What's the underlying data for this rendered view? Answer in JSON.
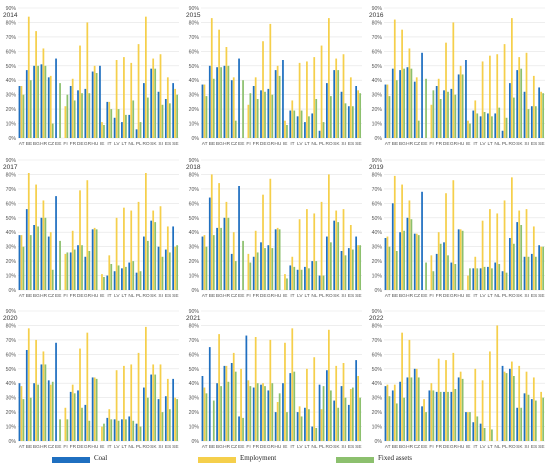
{
  "colors": {
    "coal": "#1f6fc0",
    "employment": "#f5cf4b",
    "fixed_assets": "#8cc06e",
    "grid": "#e3e3e3",
    "text": "#555555"
  },
  "legend": {
    "coal": "Coal",
    "employment": "Employment",
    "fixed_assets": "Fixed assets"
  },
  "chart_data": [
    {
      "type": "bar",
      "title": "2014",
      "ylim": [
        0,
        90
      ],
      "yticks": [
        "0%",
        "10%",
        "20%",
        "30%",
        "40%",
        "50%",
        "60%",
        "70%",
        "80%",
        "90%"
      ],
      "categories": [
        "AT",
        "BE",
        "BG",
        "HR",
        "CZ",
        "EE",
        "FI",
        "FR",
        "DE",
        "GR",
        "HU",
        "IE",
        "IT",
        "LV",
        "LT",
        "NL",
        "PL",
        "RO",
        "SK",
        "SI",
        "ES",
        "SE"
      ],
      "series": [
        {
          "name": "Coal",
          "values": [
            36,
            47,
            50,
            51,
            42,
            55,
            0,
            36,
            33,
            34,
            46,
            50,
            25,
            14,
            11,
            16,
            6,
            38,
            48,
            32,
            27,
            38
          ]
        },
        {
          "name": "Employment",
          "values": [
            36,
            84,
            74,
            62,
            43,
            0,
            22,
            41,
            64,
            80,
            50,
            11,
            25,
            54,
            56,
            52,
            65,
            84,
            55,
            58,
            42,
            34
          ]
        },
        {
          "name": "Fixed assets",
          "values": [
            30,
            40,
            50,
            50,
            10,
            38,
            30,
            26,
            31,
            31,
            45,
            9,
            20,
            20,
            16,
            26,
            11,
            28,
            48,
            23,
            24,
            30
          ]
        }
      ]
    },
    {
      "type": "bar",
      "title": "2015",
      "ylim": [
        0,
        90
      ],
      "yticks": [
        "0%",
        "10%",
        "20%",
        "30%",
        "40%",
        "50%",
        "60%",
        "70%",
        "80%",
        "90%"
      ],
      "categories": [
        "AT",
        "BE",
        "BG",
        "HR",
        "CZ",
        "EE",
        "FI",
        "FR",
        "DE",
        "GR",
        "HU",
        "IE",
        "IT",
        "LV",
        "LT",
        "NL",
        "PL",
        "RO",
        "SK",
        "SI",
        "ES",
        "SE"
      ],
      "series": [
        {
          "name": "Coal",
          "values": [
            37,
            50,
            49,
            50,
            40,
            55,
            0,
            36,
            33,
            34,
            47,
            54,
            19,
            15,
            11,
            17,
            5,
            38,
            47,
            32,
            22,
            36
          ]
        },
        {
          "name": "Employment",
          "values": [
            37,
            83,
            75,
            63,
            42,
            0,
            23,
            42,
            67,
            79,
            50,
            12,
            26,
            52,
            53,
            56,
            64,
            83,
            55,
            58,
            42,
            33
          ]
        },
        {
          "name": "Fixed assets",
          "values": [
            29,
            41,
            49,
            50,
            12,
            40,
            31,
            27,
            32,
            30,
            43,
            9,
            19,
            19,
            15,
            27,
            11,
            29,
            47,
            24,
            22,
            31
          ]
        }
      ]
    },
    {
      "type": "bar",
      "title": "2016",
      "ylim": [
        0,
        90
      ],
      "yticks": [
        "0%",
        "10%",
        "20%",
        "30%",
        "40%",
        "50%",
        "60%",
        "70%",
        "80%",
        "90%"
      ],
      "categories": [
        "AT",
        "BE",
        "BG",
        "HR",
        "CZ",
        "EE",
        "FI",
        "FR",
        "DE",
        "GR",
        "HU",
        "IE",
        "IT",
        "LV",
        "LT",
        "NL",
        "PL",
        "RO",
        "SK",
        "SI",
        "ES",
        "SE"
      ],
      "series": [
        {
          "name": "Coal",
          "values": [
            37,
            48,
            47,
            49,
            39,
            59,
            0,
            36,
            33,
            34,
            44,
            54,
            19,
            15,
            17,
            17,
            5,
            38,
            47,
            32,
            22,
            35
          ]
        },
        {
          "name": "Employment",
          "values": [
            37,
            82,
            75,
            62,
            42,
            0,
            23,
            41,
            66,
            80,
            50,
            12,
            26,
            53,
            57,
            58,
            65,
            83,
            56,
            59,
            43,
            32
          ]
        },
        {
          "name": "Fixed assets",
          "values": [
            29,
            40,
            48,
            48,
            12,
            41,
            33,
            27,
            32,
            30,
            44,
            10,
            17,
            18,
            15,
            21,
            14,
            28,
            48,
            20,
            22,
            31
          ]
        }
      ]
    },
    {
      "type": "bar",
      "title": "2017",
      "ylim": [
        0,
        90
      ],
      "yticks": [
        "0%",
        "10%",
        "20%",
        "30%",
        "40%",
        "50%",
        "60%",
        "70%",
        "80%",
        "90%"
      ],
      "categories": [
        "AT",
        "BE",
        "BG",
        "HR",
        "CZ",
        "EE",
        "FI",
        "FR",
        "DE",
        "GR",
        "HU",
        "IE",
        "IT",
        "LV",
        "LT",
        "NL",
        "PL",
        "RO",
        "SK",
        "SI",
        "ES",
        "SE"
      ],
      "series": [
        {
          "name": "Coal",
          "values": [
            38,
            56,
            45,
            50,
            37,
            65,
            0,
            26,
            31,
            23,
            42,
            0,
            10,
            13,
            15,
            19,
            12,
            37,
            48,
            30,
            28,
            44
          ]
        },
        {
          "name": "Employment",
          "values": [
            38,
            81,
            73,
            62,
            40,
            0,
            25,
            41,
            69,
            76,
            43,
            11,
            24,
            50,
            57,
            55,
            61,
            81,
            55,
            58,
            44,
            30
          ]
        },
        {
          "name": "Fixed assets",
          "values": [
            30,
            38,
            44,
            50,
            14,
            34,
            26,
            28,
            31,
            27,
            42,
            9,
            18,
            17,
            16,
            20,
            13,
            34,
            47,
            23,
            26,
            31
          ]
        }
      ]
    },
    {
      "type": "bar",
      "title": "2018",
      "ylim": [
        0,
        90
      ],
      "yticks": [
        "0%",
        "10%",
        "20%",
        "30%",
        "40%",
        "50%",
        "60%",
        "70%",
        "80%",
        "90%"
      ],
      "categories": [
        "AT",
        "BE",
        "BG",
        "HR",
        "CZ",
        "EE",
        "FI",
        "FR",
        "DE",
        "GR",
        "HU",
        "IE",
        "IT",
        "LV",
        "LT",
        "NL",
        "PL",
        "RO",
        "SK",
        "SI",
        "ES",
        "SE"
      ],
      "series": [
        {
          "name": "Coal",
          "values": [
            37,
            64,
            43,
            50,
            25,
            72,
            0,
            23,
            33,
            31,
            42,
            0,
            17,
            14,
            16,
            20,
            10,
            37,
            48,
            27,
            29,
            37
          ]
        },
        {
          "name": "Employment",
          "values": [
            38,
            80,
            74,
            61,
            40,
            0,
            25,
            41,
            66,
            77,
            43,
            11,
            23,
            49,
            56,
            53,
            61,
            80,
            55,
            56,
            45,
            31
          ]
        },
        {
          "name": "Fixed assets",
          "values": [
            30,
            38,
            43,
            50,
            20,
            34,
            19,
            26,
            29,
            29,
            42,
            8,
            16,
            14,
            15,
            20,
            10,
            33,
            47,
            24,
            28,
            31
          ]
        }
      ]
    },
    {
      "type": "bar",
      "title": "2019",
      "ylim": [
        0,
        90
      ],
      "yticks": [
        "0%",
        "10%",
        "20%",
        "30%",
        "40%",
        "50%",
        "60%",
        "70%",
        "80%",
        "90%"
      ],
      "categories": [
        "AT",
        "BE",
        "BG",
        "HR",
        "CZ",
        "EE",
        "FI",
        "FR",
        "DE",
        "GR",
        "HU",
        "IE",
        "IT",
        "LV",
        "LT",
        "NL",
        "PL",
        "RO",
        "SK",
        "SI",
        "ES",
        "SE"
      ],
      "series": [
        {
          "name": "Coal",
          "values": [
            36,
            60,
            40,
            50,
            39,
            68,
            0,
            25,
            33,
            19,
            42,
            0,
            15,
            15,
            16,
            19,
            13,
            36,
            47,
            23,
            25,
            31
          ]
        },
        {
          "name": "Employment",
          "values": [
            37,
            79,
            73,
            62,
            39,
            0,
            24,
            40,
            67,
            76,
            42,
            10,
            23,
            48,
            56,
            53,
            62,
            78,
            55,
            56,
            44,
            30
          ]
        },
        {
          "name": "Fixed assets",
          "values": [
            30,
            27,
            41,
            49,
            38,
            19,
            13,
            32,
            24,
            18,
            41,
            15,
            15,
            16,
            15,
            18,
            12,
            32,
            45,
            23,
            23,
            30
          ]
        }
      ]
    },
    {
      "type": "bar",
      "title": "2020",
      "ylim": [
        0,
        90
      ],
      "yticks": [
        "0%",
        "10%",
        "20%",
        "30%",
        "40%",
        "50%",
        "60%",
        "70%",
        "80%",
        "90%"
      ],
      "categories": [
        "AT",
        "BE",
        "BG",
        "HR",
        "CZ",
        "EE",
        "FI",
        "FR",
        "DE",
        "GR",
        "HU",
        "IE",
        "IT",
        "LV",
        "LT",
        "NL",
        "PL",
        "RO",
        "SK",
        "SI",
        "ES",
        "SE"
      ],
      "series": [
        {
          "name": "Coal",
          "values": [
            40,
            63,
            40,
            53,
            42,
            68,
            0,
            34,
            35,
            25,
            44,
            0,
            16,
            15,
            15,
            17,
            12,
            37,
            46,
            29,
            31,
            43
          ]
        },
        {
          "name": "Employment",
          "values": [
            38,
            78,
            70,
            62,
            39,
            0,
            23,
            39,
            64,
            75,
            44,
            10,
            22,
            49,
            52,
            53,
            61,
            79,
            53,
            53,
            43,
            30
          ]
        },
        {
          "name": "Fixed assets",
          "values": [
            29,
            30,
            39,
            53,
            41,
            15,
            15,
            33,
            23,
            14,
            43,
            12,
            15,
            14,
            15,
            14,
            10,
            30,
            46,
            20,
            22,
            29
          ]
        }
      ]
    },
    {
      "type": "bar",
      "title": "2021",
      "ylim": [
        0,
        90
      ],
      "yticks": [
        "0%",
        "10%",
        "20%",
        "30%",
        "40%",
        "50%",
        "60%",
        "70%",
        "80%",
        "90%"
      ],
      "categories": [
        "AT",
        "BE",
        "BG",
        "HR",
        "CZ",
        "EE",
        "FI",
        "FR",
        "DE",
        "GR",
        "HU",
        "IE",
        "IT",
        "LV",
        "LT",
        "NL",
        "PL",
        "RO",
        "SK",
        "SI",
        "ES",
        "SE"
      ],
      "series": [
        {
          "name": "Coal",
          "values": [
            45,
            65,
            40,
            52,
            54,
            17,
            73,
            37,
            39,
            35,
            20,
            40,
            47,
            20,
            23,
            10,
            39,
            49,
            28,
            38,
            25,
            56
          ]
        },
        {
          "name": "Employment",
          "values": [
            37,
            0,
            74,
            52,
            61,
            50,
            42,
            72,
            40,
            70,
            27,
            68,
            78,
            24,
            50,
            58,
            22,
            77,
            52,
            54,
            36,
            45
          ]
        },
        {
          "name": "Fixed assets",
          "values": [
            33,
            28,
            38,
            41,
            48,
            16,
            38,
            40,
            38,
            40,
            33,
            20,
            48,
            17,
            22,
            9,
            38,
            35,
            23,
            30,
            37,
            30
          ]
        }
      ]
    },
    {
      "type": "bar",
      "title": "2022",
      "ylim": [
        0,
        90
      ],
      "yticks": [
        "0%",
        "10%",
        "20%",
        "30%",
        "40%",
        "50%",
        "60%",
        "70%",
        "80%",
        "90%"
      ],
      "categories": [
        "AT",
        "BE",
        "BG",
        "HR",
        "CZ",
        "EE",
        "FI",
        "FR",
        "DE",
        "GR",
        "HU",
        "IE",
        "IT",
        "LV",
        "LT",
        "NL",
        "PL",
        "RO",
        "SK",
        "SI",
        "ES",
        "SE"
      ],
      "series": [
        {
          "name": "Coal",
          "values": [
            38,
            35,
            41,
            44,
            50,
            24,
            35,
            34,
            34,
            34,
            44,
            20,
            13,
            12,
            0,
            0,
            52,
            50,
            23,
            33,
            29,
            0
          ],
          "note": ""
        },
        {
          "name": "Employment",
          "values": [
            39,
            39,
            75,
            70,
            50,
            29,
            40,
            57,
            56,
            61,
            48,
            20,
            50,
            42,
            62,
            80,
            48,
            55,
            52,
            48,
            44,
            34
          ]
        },
        {
          "name": "Fixed assets",
          "values": [
            31,
            26,
            30,
            44,
            44,
            20,
            35,
            34,
            34,
            36,
            43,
            20,
            17,
            9,
            8,
            0,
            47,
            45,
            23,
            32,
            28,
            30
          ]
        }
      ]
    }
  ]
}
